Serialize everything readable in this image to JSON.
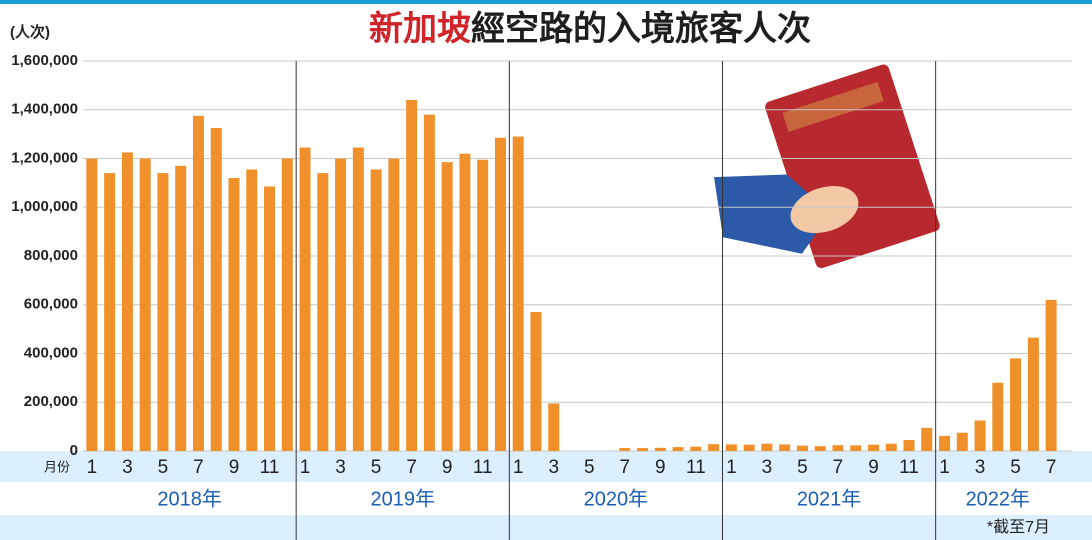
{
  "chart_data": {
    "type": "bar",
    "title": [
      "新加坡",
      "經空路的入境旅客人次"
    ],
    "title_colors": [
      "#d0232a",
      "#1e1e1e"
    ],
    "y_label": "(人次)",
    "x_label": "月份",
    "categories": [
      "1",
      null,
      "3",
      null,
      "5",
      null,
      "7",
      null,
      "9",
      null,
      "11",
      null,
      "1",
      null,
      "3",
      null,
      "5",
      null,
      "7",
      null,
      "9",
      null,
      "11",
      null,
      "1",
      null,
      "3",
      null,
      "5",
      null,
      "7",
      null,
      "9",
      null,
      "11",
      null,
      "1",
      null,
      "3",
      null,
      "5",
      null,
      "7",
      null,
      "9",
      null,
      "11",
      null,
      "1",
      null,
      "3",
      null,
      "5",
      null,
      "7"
    ],
    "years": [
      "2018年",
      "2019年",
      "2020年",
      "2021年",
      "2022年"
    ],
    "values": [
      1200000,
      1140000,
      1225000,
      1200000,
      1140000,
      1170000,
      1375000,
      1325000,
      1120000,
      1155000,
      1085000,
      1200000,
      1245000,
      1140000,
      1200000,
      1245000,
      1155000,
      1200000,
      1440000,
      1380000,
      1185000,
      1220000,
      1195000,
      1285000,
      1290000,
      570000,
      195000,
      0,
      0,
      0,
      12000,
      12000,
      13000,
      16000,
      18000,
      28000,
      27000,
      26000,
      30000,
      27000,
      22000,
      20000,
      24000,
      23000,
      26000,
      30000,
      45000,
      95000,
      62000,
      75000,
      125000,
      280000,
      380000,
      465000,
      620000
    ],
    "color": "#f0902a",
    "ylim": [
      0,
      1600000
    ],
    "yticks": [
      0,
      {
        "value": 200000,
        "label": "200,000"
      },
      {
        "value": 400000,
        "label": "400,000"
      },
      {
        "value": 600000,
        "label": "600,000"
      },
      {
        "value": 800000,
        "label": "800,000"
      },
      {
        "value": 1000000,
        "label": "1,000,000"
      },
      {
        "value": 1200000,
        "label": "1,200,000"
      },
      {
        "value": 1400000,
        "label": "1,400,000"
      },
      {
        "value": 1600000,
        "label": "1,600,000"
      }
    ],
    "grid": true,
    "footnote": "*截至7月"
  }
}
